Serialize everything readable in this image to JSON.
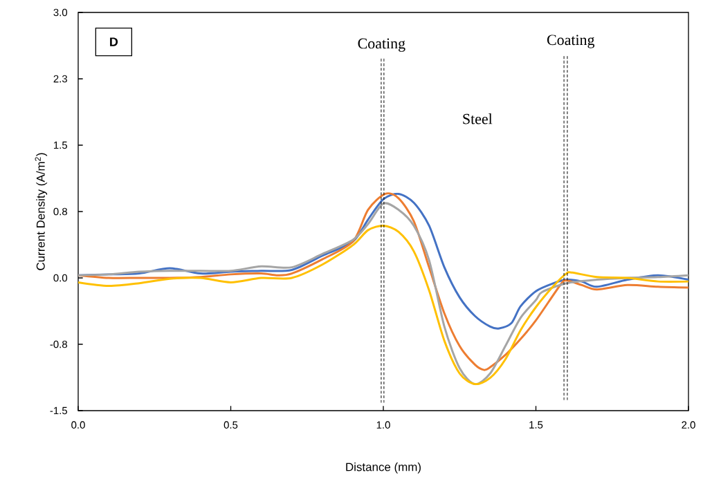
{
  "chart_data": {
    "type": "line",
    "xlabel": "Distance (mm)",
    "ylabel": "Current Density (A/m$^{2}$)",
    "xlim": [
      0,
      2
    ],
    "ylim": [
      -1.5,
      3.0
    ],
    "xticks": [
      {
        "value": 0,
        "label": "0.0"
      },
      {
        "value": 0.5,
        "label": "0.5"
      },
      {
        "value": 1.0,
        "label": "1.0"
      },
      {
        "value": 1.5,
        "label": "1.5"
      },
      {
        "value": 2.0,
        "label": "2.0"
      }
    ],
    "yticks": [
      {
        "value": -1.5,
        "label": "-1.5"
      },
      {
        "value": -0.75,
        "label": "-0.8"
      },
      {
        "value": 0,
        "label": "0.0"
      },
      {
        "value": 0.75,
        "label": "0.8"
      },
      {
        "value": 1.5,
        "label": "1.5"
      },
      {
        "value": 2.25,
        "label": "2.3"
      },
      {
        "value": 3.0,
        "label": "3.0"
      }
    ],
    "grid": false,
    "marker": "none",
    "line_style": "solid",
    "annotations": [
      "D",
      "Coating",
      "Coating",
      "Steel"
    ],
    "series": [
      {
        "color": "#4472c4",
        "x": [
          0,
          0.1,
          0.2,
          0.3,
          0.4,
          0.5,
          0.6,
          0.7,
          0.8,
          0.9,
          0.95,
          1.0,
          1.05,
          1.1,
          1.15,
          1.2,
          1.25,
          1.3,
          1.35,
          1.38,
          1.42,
          1.45,
          1.5,
          1.558,
          1.6,
          1.65,
          1.7,
          1.8,
          1.9,
          2.0
        ],
        "values": [
          0.03,
          0.04,
          0.05,
          0.11,
          0.05,
          0.07,
          0.08,
          0.09,
          0.25,
          0.41,
          0.66,
          0.89,
          0.95,
          0.85,
          0.59,
          0.12,
          -0.22,
          -0.43,
          -0.55,
          -0.57,
          -0.51,
          -0.32,
          -0.15,
          -0.06,
          -0.02,
          -0.04,
          -0.1,
          -0.02,
          0.03,
          -0.02
        ]
      },
      {
        "color": "#ed7d31",
        "x": [
          0,
          0.1,
          0.2,
          0.3,
          0.4,
          0.5,
          0.6,
          0.65,
          0.7,
          0.8,
          0.9,
          0.95,
          1.006,
          1.05,
          1.1,
          1.15,
          1.2,
          1.25,
          1.3,
          1.33,
          1.35,
          1.4,
          1.45,
          1.5,
          1.58,
          1.6,
          1.65,
          1.7,
          1.8,
          1.9,
          2.0
        ],
        "values": [
          0.03,
          0.0,
          0.0,
          0.0,
          0.01,
          0.04,
          0.05,
          0.03,
          0.05,
          0.21,
          0.41,
          0.77,
          0.95,
          0.9,
          0.64,
          0.12,
          -0.4,
          -0.77,
          -0.98,
          -1.04,
          -1.01,
          -0.87,
          -0.69,
          -0.48,
          -0.08,
          -0.03,
          -0.08,
          -0.13,
          -0.08,
          -0.1,
          -0.11
        ]
      },
      {
        "color": "#a5a5a5",
        "x": [
          0,
          0.1,
          0.2,
          0.3,
          0.4,
          0.5,
          0.6,
          0.7,
          0.8,
          0.9,
          0.95,
          1.0,
          1.05,
          1.1,
          1.15,
          1.2,
          1.25,
          1.3,
          1.35,
          1.4,
          1.45,
          1.5,
          1.52,
          1.6,
          1.7,
          1.8,
          1.9,
          2.0
        ],
        "values": [
          0.03,
          0.04,
          0.07,
          0.08,
          0.08,
          0.08,
          0.13,
          0.12,
          0.27,
          0.43,
          0.61,
          0.84,
          0.77,
          0.59,
          0.2,
          -0.55,
          -1.02,
          -1.2,
          -1.08,
          -0.77,
          -0.45,
          -0.25,
          -0.16,
          -0.06,
          -0.02,
          0.0,
          0.01,
          0.03
        ]
      },
      {
        "color": "#ffc000",
        "x": [
          0,
          0.1,
          0.2,
          0.3,
          0.4,
          0.5,
          0.6,
          0.7,
          0.8,
          0.9,
          0.95,
          1.0,
          1.05,
          1.1,
          1.15,
          1.2,
          1.25,
          1.3,
          1.35,
          1.4,
          1.45,
          1.5,
          1.558,
          1.6,
          1.62,
          1.7,
          1.8,
          1.9,
          2.0
        ],
        "values": [
          -0.05,
          -0.09,
          -0.06,
          -0.01,
          0.0,
          -0.05,
          0.0,
          0.0,
          0.15,
          0.37,
          0.54,
          0.59,
          0.52,
          0.3,
          -0.14,
          -0.71,
          -1.08,
          -1.2,
          -1.13,
          -0.92,
          -0.59,
          -0.33,
          -0.09,
          0.05,
          0.06,
          0.01,
          0.0,
          -0.04,
          -0.04
        ]
      },
      {
        "type": "line",
        "line_style": "dashed",
        "color": "#000000",
        "x": [
          0.993,
          0.993
        ],
        "values": [
          -1.41,
          2.48
        ]
      },
      {
        "type": "line",
        "line_style": "dashed",
        "color": "#000000",
        "x": [
          1.002,
          1.002
        ],
        "values": [
          -1.41,
          2.48
        ]
      },
      {
        "type": "line",
        "line_style": "dashed",
        "color": "#000000",
        "x": [
          1.592,
          1.592
        ],
        "values": [
          -1.38,
          2.52
        ]
      },
      {
        "type": "line",
        "line_style": "dashed",
        "color": "#000000",
        "x": [
          1.603,
          1.603
        ],
        "values": [
          -1.38,
          2.52
        ]
      }
    ]
  }
}
